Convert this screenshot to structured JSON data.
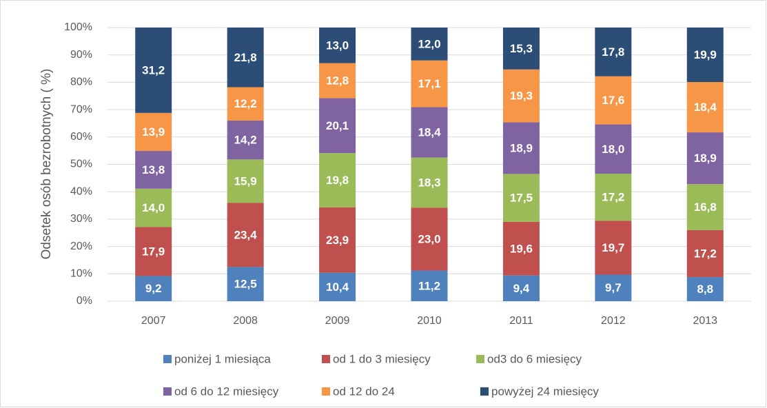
{
  "chart_data": {
    "type": "stacked_bar",
    "y_label": "Odsetek osób bezrobotnych ( %)",
    "categories": [
      "2007",
      "2008",
      "2009",
      "2010",
      "2011",
      "2012",
      "2013"
    ],
    "ylim": [
      0,
      100
    ],
    "yticks": [
      {
        "value": 0,
        "label": "0%"
      },
      {
        "value": 10,
        "label": "10%"
      },
      {
        "value": 20,
        "label": "20%"
      },
      {
        "value": 30,
        "label": "30%"
      },
      {
        "value": 40,
        "label": "40%"
      },
      {
        "value": 50,
        "label": "50%"
      },
      {
        "value": 60,
        "label": "60%"
      },
      {
        "value": 70,
        "label": "70%"
      },
      {
        "value": 80,
        "label": "80%"
      },
      {
        "value": 90,
        "label": "90%"
      },
      {
        "value": 100,
        "label": "100%"
      }
    ],
    "grid": true,
    "legend": "bottom",
    "series": [
      {
        "name": "poniżej 1 miesiąca",
        "color": "#4f81bd",
        "values": [
          9.2,
          12.5,
          10.4,
          11.2,
          9.4,
          9.7,
          8.8
        ],
        "value_labels": [
          "9,2",
          "12,5",
          "10,4",
          "11,2",
          "9,4",
          "9,7",
          "8,8"
        ]
      },
      {
        "name": "od 1 do 3 miesięcy",
        "color": "#c0504d",
        "values": [
          17.9,
          23.4,
          23.9,
          23.0,
          19.6,
          19.7,
          17.2
        ],
        "value_labels": [
          "17,9",
          "23,4",
          "23,9",
          "23,0",
          "19,6",
          "19,7",
          "17,2"
        ]
      },
      {
        "name": "od3 do 6 miesięcy",
        "color": "#9bbb59",
        "values": [
          14.0,
          15.9,
          19.8,
          18.3,
          17.5,
          17.2,
          16.8
        ],
        "value_labels": [
          "14,0",
          "15,9",
          "19,8",
          "18,3",
          "17,5",
          "17,2",
          "16,8"
        ]
      },
      {
        "name": "od 6 do 12 miesięcy",
        "color": "#8064a2",
        "values": [
          13.8,
          14.2,
          20.1,
          18.4,
          18.9,
          18.0,
          18.9
        ],
        "value_labels": [
          "13,8",
          "14,2",
          "20,1",
          "18,4",
          "18,9",
          "18,0",
          "18,9"
        ]
      },
      {
        "name": "od 12 do 24",
        "color": "#f79646",
        "values": [
          13.9,
          12.2,
          12.8,
          17.1,
          19.3,
          17.6,
          18.4
        ],
        "value_labels": [
          "13,9",
          "12,2",
          "12,8",
          "17,1",
          "19,3",
          "17,6",
          "18,4"
        ]
      },
      {
        "name": "powyżej 24 miesięcy",
        "color": "#2c4d75",
        "values": [
          31.2,
          21.8,
          13.0,
          12.0,
          15.3,
          17.8,
          19.9
        ],
        "value_labels": [
          "31,2",
          "21,8",
          "13,0",
          "12,0",
          "15,3",
          "17,8",
          "19,9"
        ]
      }
    ]
  }
}
